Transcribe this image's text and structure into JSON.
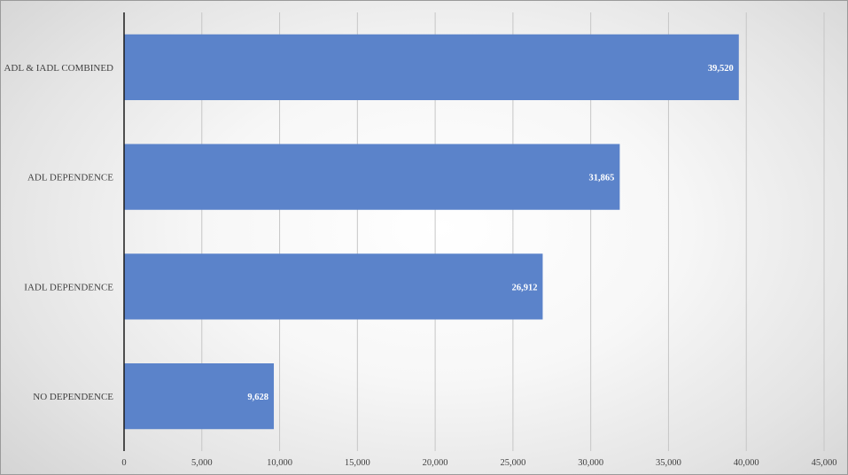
{
  "chart_data": {
    "type": "bar",
    "orientation": "horizontal",
    "categories": [
      "NO DEPENDENCE",
      "IADL DEPENDENCE",
      "ADL DEPENDENCE",
      "ADL & IADL COMBINED"
    ],
    "values": [
      9628,
      26912,
      31865,
      39520
    ],
    "data_labels": [
      "9,628",
      "26,912",
      "31,865",
      "39,520"
    ],
    "xlim": [
      0,
      45000
    ],
    "x_ticks": [
      0,
      5000,
      10000,
      15000,
      20000,
      25000,
      30000,
      35000,
      40000,
      45000
    ],
    "x_tick_labels": [
      "0",
      "5,000",
      "10,000",
      "15,000",
      "20,000",
      "25,000",
      "30,000",
      "35,000",
      "40,000",
      "45,000"
    ],
    "title": "",
    "xlabel": "",
    "ylabel": "",
    "grid": "vertical",
    "legend": "none",
    "bar_color": "#5B83CA",
    "grid_color": "#c6c6c6",
    "axis_color": "#1a1a1a"
  }
}
